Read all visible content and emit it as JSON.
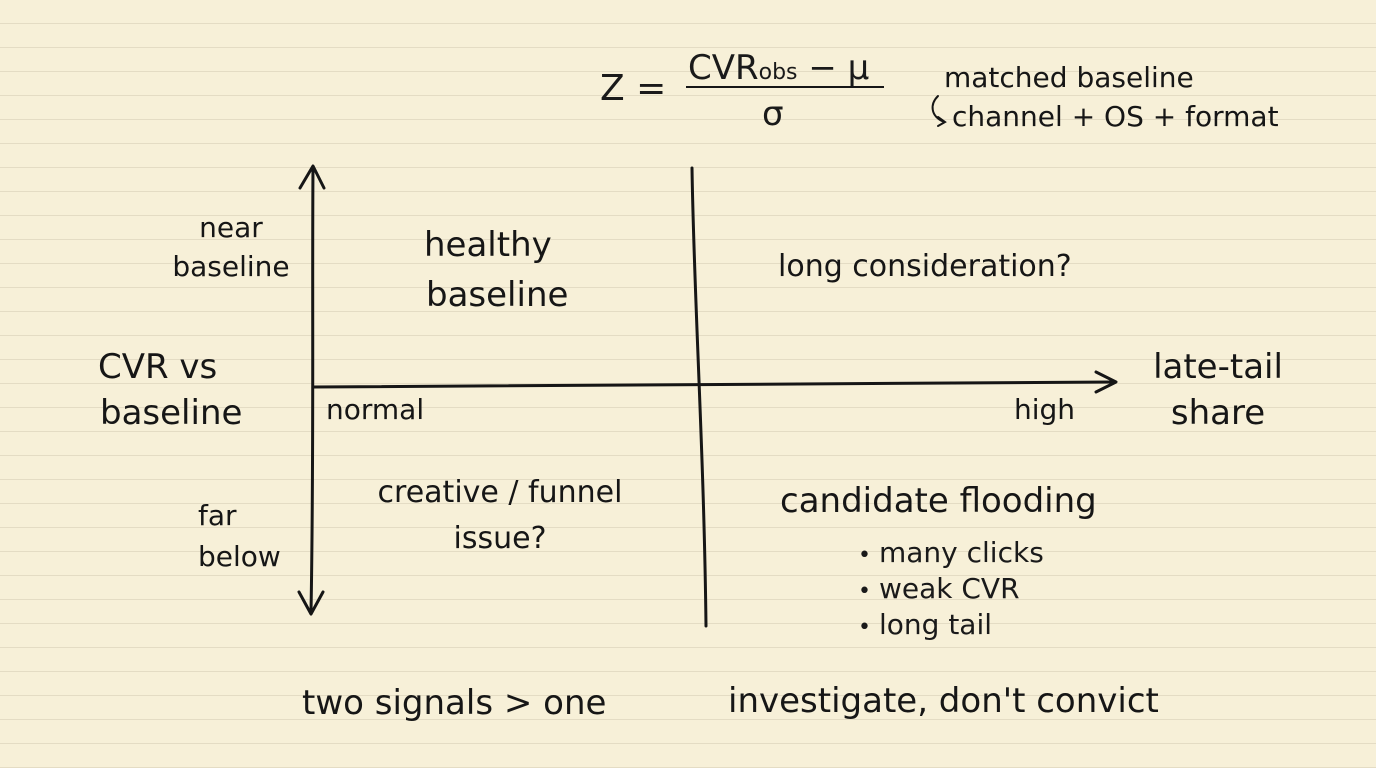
{
  "formula": {
    "lhs": "Z",
    "eq": "=",
    "numerator_main": "CVR",
    "numerator_sub": "obs",
    "numerator_rest": " − μ",
    "denominator": "σ"
  },
  "baseline_note": {
    "line1": "matched baseline",
    "line2": "channel + OS + format"
  },
  "y_axis": {
    "title_line1": "CVR vs",
    "title_line2": "baseline",
    "top_label_line1": "near",
    "top_label_line2": "baseline",
    "bottom_label_line1": "far",
    "bottom_label_line2": "below"
  },
  "x_axis": {
    "title_line1": "late-tail",
    "title_line2": "share",
    "low_label": "normal",
    "high_label": "high"
  },
  "quadrants": {
    "top_left_line1": "healthy",
    "top_left_line2": "baseline",
    "top_right": "long consideration?",
    "bottom_left_line1": "creative / funnel",
    "bottom_left_line2": "issue?",
    "bottom_right_title": "candidate flooding",
    "bottom_right_bullets": [
      "many clicks",
      "weak CVR",
      "long tail"
    ]
  },
  "footer": {
    "left": "two signals > one",
    "right": "investigate, don't convict"
  }
}
